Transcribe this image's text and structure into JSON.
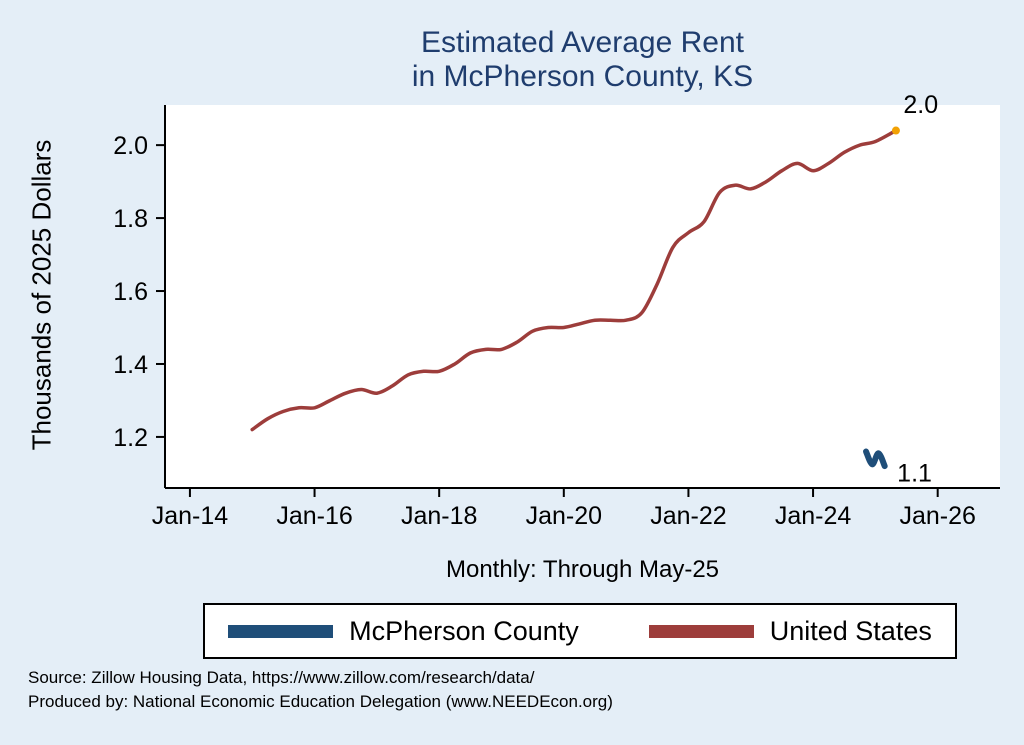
{
  "title": {
    "line1": "Estimated Average Rent",
    "line2": "in McPherson County, KS"
  },
  "axes": {
    "y_label": "Thousands of 2025 Dollars",
    "caption": "Monthly: Through May-25"
  },
  "legend": {
    "items": [
      {
        "label": "McPherson County",
        "color": "#1f4e79"
      },
      {
        "label": "United States",
        "color": "#9d3d3b"
      }
    ]
  },
  "footer": {
    "line1": "Source: Zillow Housing Data, https://www.zillow.com/research/data/",
    "line2": "Produced by: National Economic Education Delegation (www.NEEDEcon.org)"
  },
  "chart_data": {
    "type": "line",
    "title": "Estimated Average Rent in McPherson County, KS",
    "xlabel": "Monthly: Through May-25",
    "ylabel": "Thousands of 2025 Dollars",
    "x_tick_years": [
      2014,
      2016,
      2018,
      2020,
      2022,
      2024,
      2026
    ],
    "x_tick_labels": [
      "Jan-14",
      "Jan-16",
      "Jan-18",
      "Jan-20",
      "Jan-22",
      "Jan-24",
      "Jan-26"
    ],
    "y_ticks": [
      1.2,
      1.4,
      1.6,
      1.8,
      2.0
    ],
    "xlim": [
      2013.6,
      2027.0
    ],
    "ylim": [
      1.06,
      2.11
    ],
    "grid": false,
    "legend_position": "bottom",
    "series": [
      {
        "name": "United States",
        "color": "#9d3d3b",
        "line_width": 3.5,
        "end_dot_color": "#f2a104",
        "x": [
          2015.0,
          2015.25,
          2015.5,
          2015.75,
          2016.0,
          2016.25,
          2016.5,
          2016.75,
          2017.0,
          2017.25,
          2017.5,
          2017.75,
          2018.0,
          2018.25,
          2018.5,
          2018.75,
          2019.0,
          2019.25,
          2019.5,
          2019.75,
          2020.0,
          2020.25,
          2020.5,
          2020.75,
          2021.0,
          2021.25,
          2021.5,
          2021.75,
          2022.0,
          2022.25,
          2022.5,
          2022.75,
          2023.0,
          2023.25,
          2023.5,
          2023.75,
          2024.0,
          2024.25,
          2024.5,
          2024.75,
          2025.0,
          2025.33
        ],
        "values": [
          1.22,
          1.25,
          1.27,
          1.28,
          1.28,
          1.3,
          1.32,
          1.33,
          1.32,
          1.34,
          1.37,
          1.38,
          1.38,
          1.4,
          1.43,
          1.44,
          1.44,
          1.46,
          1.49,
          1.5,
          1.5,
          1.51,
          1.52,
          1.52,
          1.52,
          1.54,
          1.62,
          1.72,
          1.76,
          1.79,
          1.87,
          1.89,
          1.88,
          1.9,
          1.93,
          1.95,
          1.93,
          1.95,
          1.98,
          2.0,
          2.01,
          2.04
        ]
      },
      {
        "name": "McPherson County",
        "color": "#1f4e79",
        "line_width": 6,
        "x": [
          2024.85,
          2024.95,
          2025.05,
          2025.15
        ],
        "values": [
          1.16,
          1.125,
          1.155,
          1.12
        ]
      }
    ],
    "annotations": [
      {
        "text": "2.0",
        "x": 2025.45,
        "y": 2.088
      },
      {
        "text": "1.1",
        "x": 2025.35,
        "y": 1.078
      }
    ]
  }
}
